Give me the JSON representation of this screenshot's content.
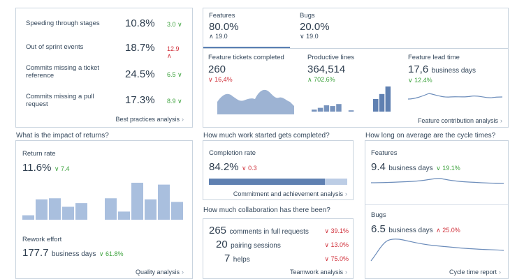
{
  "best_practices": {
    "rows": [
      {
        "label": "Speeding through stages",
        "value": "10.8%",
        "delta": "3.0",
        "dir": "down"
      },
      {
        "label": "Out of sprint events",
        "value": "18.7%",
        "delta": "12.9",
        "dir": "up"
      },
      {
        "label": "Commits missing a ticket reference",
        "value": "24.5%",
        "delta": "6.5",
        "dir": "down"
      },
      {
        "label": "Commits missing a pull request",
        "value": "17.3%",
        "delta": "8.9",
        "dir": "down"
      }
    ],
    "link": "Best practices analysis"
  },
  "features": {
    "tabs": [
      {
        "label": "Features",
        "value": "80.0%",
        "delta": "19.0",
        "dir": "up"
      },
      {
        "label": "Bugs",
        "value": "20.0%",
        "delta": "19.0",
        "dir": "down"
      }
    ],
    "metrics": [
      {
        "label": "Feature tickets completed",
        "value": "260",
        "unit": "",
        "delta": "16,4%",
        "dir": "down",
        "color": "down-red"
      },
      {
        "label": "Productive lines",
        "value": "364,514",
        "unit": "",
        "delta": "702.6%",
        "dir": "up",
        "color": "up-green"
      },
      {
        "label": "Feature lead time",
        "value": "17,6",
        "unit": "business days",
        "delta": "12.4%",
        "dir": "down",
        "color": "down-green"
      }
    ],
    "link": "Feature contribution analysis"
  },
  "questions": {
    "returns": "What is the impact of returns?",
    "completed": "How much work started gets completed?",
    "cycle": "How long on average are the cycle times?",
    "collab": "How much collaboration has there been?"
  },
  "returns": {
    "rate_label": "Return rate",
    "rate_value": "11.6%",
    "rate_delta": "7.4",
    "rework_label": "Rework effort",
    "rework_value": "177.7",
    "rework_unit": "business days",
    "rework_delta": "61.8%",
    "link": "Quality analysis",
    "bars_group1": [
      0.12,
      0.55,
      0.58,
      0.35,
      0.45
    ],
    "bars_group2": [
      0.58,
      0.22,
      1.0,
      0.55,
      0.95,
      0.48
    ]
  },
  "completion": {
    "label": "Completion rate",
    "value": "84.2%",
    "delta": "0.3",
    "progress": 0.84,
    "link": "Commitment and achievement analysis"
  },
  "collab": {
    "rows": [
      {
        "num": "265",
        "text": "comments in full requests",
        "delta": "39.1%"
      },
      {
        "num": "20",
        "text": "pairing sessions",
        "delta": "13.0%"
      },
      {
        "num": "7",
        "text": "helps",
        "delta": "75.0%"
      }
    ],
    "link": "Teamwork analysis"
  },
  "cycle": {
    "features_label": "Features",
    "features_value": "9.4",
    "features_unit": "business days",
    "features_delta": "19.1%",
    "bugs_label": "Bugs",
    "bugs_value": "6.5",
    "bugs_unit": "business days",
    "bugs_delta": "25.0%",
    "link": "Cycle time report"
  },
  "colors": {
    "accent": "#5a7fb3",
    "area": "#9db3d3",
    "bar_light": "#a9bfde",
    "bar_dark": "#5f80b1",
    "red": "#d0313b",
    "green": "#3ea33e"
  }
}
